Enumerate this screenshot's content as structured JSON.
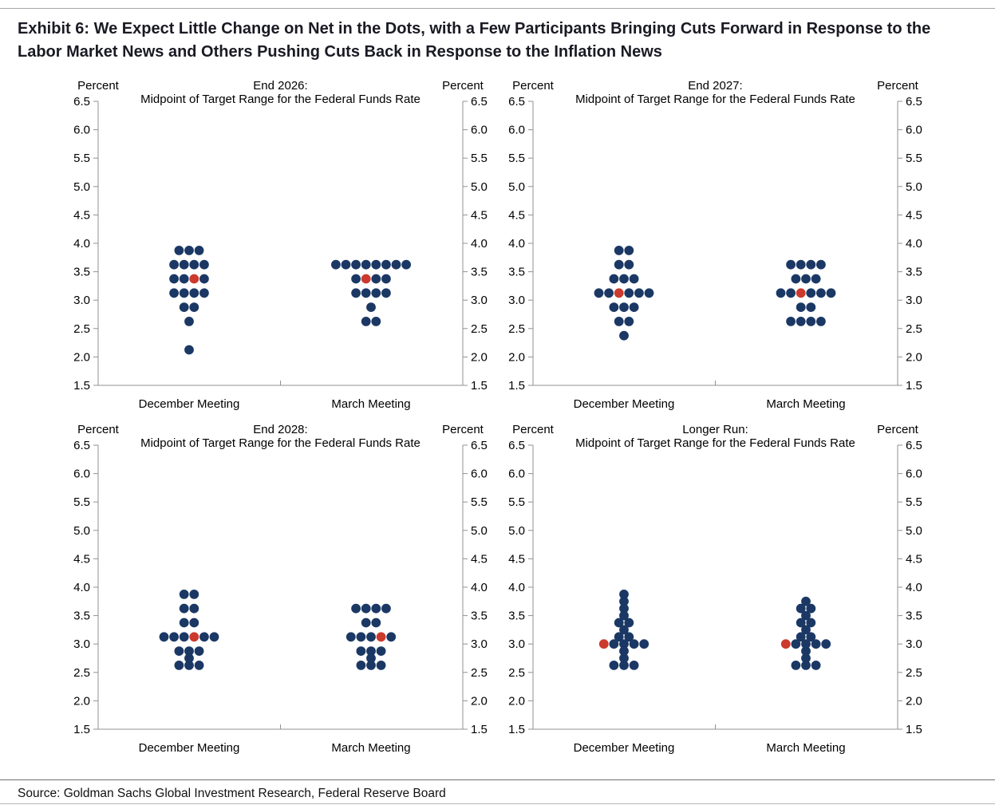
{
  "title": "Exhibit 6: We Expect Little Change on Net in the Dots, with a Few Participants Bringing Cuts Forward in Response to the Labor Market News and Others Pushing Cuts Back in Response to the Inflation News",
  "source": "Source: Goldman Sachs Global Investment Research, Federal Reserve Board",
  "colors": {
    "dot_navy": "#1b3865",
    "dot_red": "#cc392d",
    "axis_line": "#909090",
    "tick_text": "#000000",
    "heading_text": "#000000",
    "title_text": "#1a1a24"
  },
  "axis": {
    "label": "Percent",
    "min": 1.5,
    "max": 6.5,
    "step": 0.5,
    "tick_labels": [
      "6.5",
      "6.0",
      "5.5",
      "5.0",
      "4.5",
      "4.0",
      "3.5",
      "3.0",
      "2.5",
      "2.0",
      "1.5"
    ]
  },
  "categories": [
    "December Meeting",
    "March Meeting"
  ],
  "chart_data": [
    {
      "type": "scatter",
      "title": "End 2026:",
      "subtitle": "Midpoint of Target Range for the Federal Funds Rate",
      "ylabel": "Percent",
      "ylim": [
        1.5,
        6.5
      ],
      "dot_legend": {
        "n": "participant dot (navy)",
        "r": "highlighted dot (red)"
      },
      "series": [
        {
          "name": "December Meeting",
          "rows": [
            {
              "value": 3.875,
              "dots": "nnn"
            },
            {
              "value": 3.625,
              "dots": "nnnn"
            },
            {
              "value": 3.375,
              "dots": "nnrn"
            },
            {
              "value": 3.125,
              "dots": "nnnn"
            },
            {
              "value": 2.875,
              "dots": "nn"
            },
            {
              "value": 2.625,
              "dots": "n"
            },
            {
              "value": 2.125,
              "dots": "n"
            }
          ]
        },
        {
          "name": "March Meeting",
          "rows": [
            {
              "value": 3.625,
              "dots": "nnnnnnnn"
            },
            {
              "value": 3.375,
              "dots": "nrnn"
            },
            {
              "value": 3.125,
              "dots": "nnnn"
            },
            {
              "value": 2.875,
              "dots": "n"
            },
            {
              "value": 2.625,
              "dots": "nn"
            }
          ]
        }
      ]
    },
    {
      "type": "scatter",
      "title": "End 2027:",
      "subtitle": "Midpoint of Target Range for the Federal Funds Rate",
      "ylabel": "Percent",
      "ylim": [
        1.5,
        6.5
      ],
      "series": [
        {
          "name": "December Meeting",
          "rows": [
            {
              "value": 3.875,
              "dots": "nn"
            },
            {
              "value": 3.625,
              "dots": "nn"
            },
            {
              "value": 3.375,
              "dots": "nnn"
            },
            {
              "value": 3.125,
              "dots": "nnrnnn"
            },
            {
              "value": 2.875,
              "dots": "nnn"
            },
            {
              "value": 2.625,
              "dots": "nn"
            },
            {
              "value": 2.375,
              "dots": "n"
            }
          ]
        },
        {
          "name": "March Meeting",
          "rows": [
            {
              "value": 3.625,
              "dots": "nnnn"
            },
            {
              "value": 3.375,
              "dots": "nnn"
            },
            {
              "value": 3.125,
              "dots": "nnrnnn"
            },
            {
              "value": 2.875,
              "dots": "nn"
            },
            {
              "value": 2.625,
              "dots": "nnnn"
            }
          ]
        }
      ]
    },
    {
      "type": "scatter",
      "title": "End 2028:",
      "subtitle": "Midpoint of Target Range for the Federal Funds Rate",
      "ylabel": "Percent",
      "ylim": [
        1.5,
        6.5
      ],
      "series": [
        {
          "name": "December Meeting",
          "rows": [
            {
              "value": 3.875,
              "dots": "nn"
            },
            {
              "value": 3.625,
              "dots": "nn"
            },
            {
              "value": 3.375,
              "dots": "nn"
            },
            {
              "value": 3.125,
              "dots": "nnnrnn"
            },
            {
              "value": 2.875,
              "dots": "nnn"
            },
            {
              "value": 2.75,
              "dots": "n"
            },
            {
              "value": 2.625,
              "dots": "nnn"
            }
          ]
        },
        {
          "name": "March Meeting",
          "rows": [
            {
              "value": 3.625,
              "dots": "nnnn"
            },
            {
              "value": 3.375,
              "dots": "nn"
            },
            {
              "value": 3.125,
              "dots": "nnnrn"
            },
            {
              "value": 2.875,
              "dots": "nnn"
            },
            {
              "value": 2.75,
              "dots": "n"
            },
            {
              "value": 2.625,
              "dots": "nnn"
            }
          ]
        }
      ]
    },
    {
      "type": "scatter",
      "title": "Longer Run:",
      "subtitle": "Midpoint of Target Range for the Federal Funds Rate",
      "ylabel": "Percent",
      "ylim": [
        1.5,
        6.5
      ],
      "series": [
        {
          "name": "December Meeting",
          "rows": [
            {
              "value": 3.875,
              "dots": "n"
            },
            {
              "value": 3.75,
              "dots": "n"
            },
            {
              "value": 3.625,
              "dots": "n"
            },
            {
              "value": 3.5,
              "dots": "n"
            },
            {
              "value": 3.375,
              "dots": "nn"
            },
            {
              "value": 3.25,
              "dots": "n"
            },
            {
              "value": 3.125,
              "dots": "nn"
            },
            {
              "value": 3.0,
              "dots": "rnnnn"
            },
            {
              "value": 2.875,
              "dots": "n"
            },
            {
              "value": 2.75,
              "dots": "n"
            },
            {
              "value": 2.625,
              "dots": "nnn"
            }
          ]
        },
        {
          "name": "March Meeting",
          "rows": [
            {
              "value": 3.75,
              "dots": "n"
            },
            {
              "value": 3.625,
              "dots": "nn"
            },
            {
              "value": 3.5,
              "dots": "n"
            },
            {
              "value": 3.375,
              "dots": "nn"
            },
            {
              "value": 3.25,
              "dots": "n"
            },
            {
              "value": 3.125,
              "dots": "nn"
            },
            {
              "value": 3.0,
              "dots": "rnnnn"
            },
            {
              "value": 2.875,
              "dots": "n"
            },
            {
              "value": 2.75,
              "dots": "n"
            },
            {
              "value": 2.625,
              "dots": "nnn"
            }
          ]
        }
      ]
    }
  ]
}
